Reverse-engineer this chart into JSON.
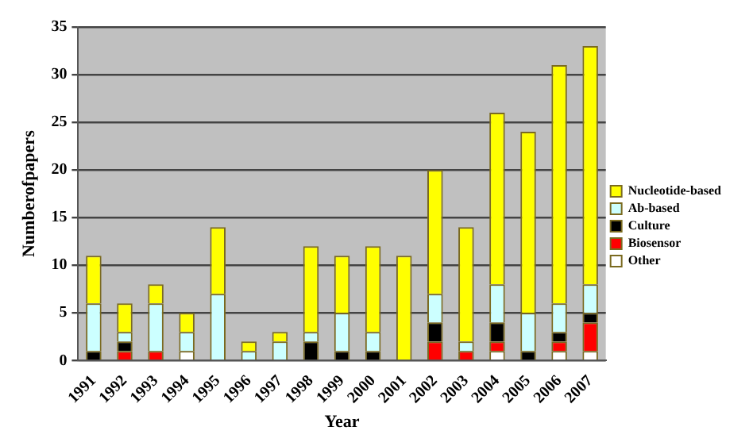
{
  "chart_data": {
    "type": "bar",
    "stacked": true,
    "xlabel": "Year",
    "ylabel": "Numberofpapers",
    "categories": [
      "1991",
      "1992",
      "1993",
      "1994",
      "1995",
      "1996",
      "1997",
      "1998",
      "1999",
      "2000",
      "2001",
      "2002",
      "2003",
      "2004",
      "2005",
      "2006",
      "2007"
    ],
    "series": [
      {
        "name": "Other",
        "color": "#ffffff",
        "values": [
          0,
          0,
          0,
          1,
          0,
          0,
          0,
          0,
          0,
          0,
          0,
          0,
          0,
          1,
          0,
          1,
          1
        ]
      },
      {
        "name": "Biosensor",
        "color": "#ff0000",
        "values": [
          0,
          1,
          1,
          0,
          0,
          0,
          0,
          0,
          0,
          0,
          0,
          2,
          1,
          1,
          0,
          1,
          3
        ]
      },
      {
        "name": "Culture",
        "color": "#000000",
        "values": [
          1,
          1,
          0,
          0,
          0,
          0,
          0,
          2,
          1,
          1,
          0,
          2,
          0,
          2,
          1,
          1,
          1
        ]
      },
      {
        "name": "Ab-based",
        "color": "#ccffff",
        "values": [
          5,
          1,
          5,
          2,
          7,
          1,
          2,
          1,
          4,
          2,
          0,
          3,
          1,
          4,
          4,
          3,
          3
        ]
      },
      {
        "name": "Nucleotide-based",
        "color": "#ffff00",
        "values": [
          5,
          3,
          2,
          2,
          7,
          1,
          1,
          9,
          6,
          9,
          11,
          13,
          12,
          18,
          19,
          25,
          25
        ]
      }
    ],
    "ylim": [
      0,
      35
    ],
    "yticks": [
      0,
      5,
      10,
      15,
      20,
      25,
      30,
      35
    ],
    "grid": "y",
    "legend": "right"
  }
}
